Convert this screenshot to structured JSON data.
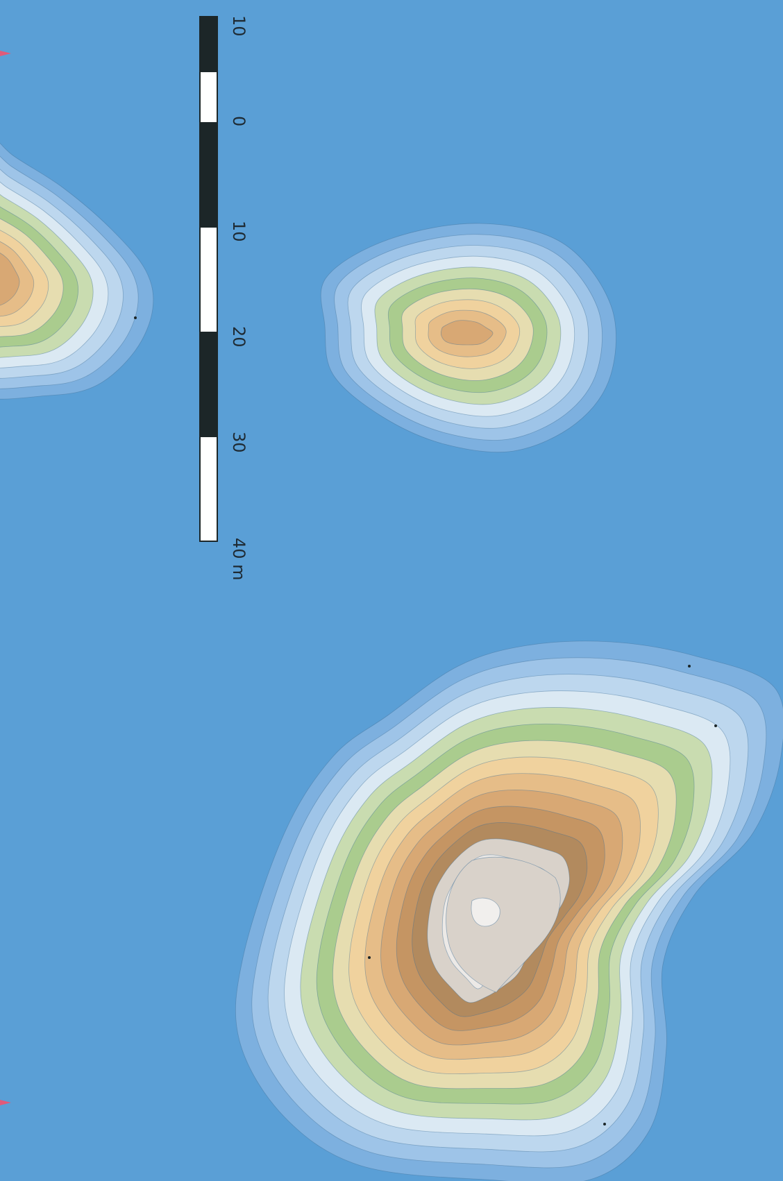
{
  "map": {
    "type": "contour-map",
    "orientation": "rotated 90° clockwise",
    "colors": {
      "water": "#5a9fd6",
      "contour_line": "#3f6f97",
      "scale_dark": "#1c2628",
      "scale_light": "#ffffff",
      "elevation_ramp": [
        "#7db0df",
        "#9ec4e8",
        "#bdd7ee",
        "#dbe9f3",
        "#c9dcb0",
        "#aacc8e",
        "#e6ddb0",
        "#f0d29e",
        "#e6bd88",
        "#d8a874",
        "#c59563",
        "#b28a5e",
        "#d9d2ca",
        "#ece9e6"
      ]
    },
    "islands": [
      {
        "name": "large island",
        "contour_count": 14,
        "has_summit_plateau": true
      },
      {
        "name": "small island",
        "contour_count": 10
      },
      {
        "name": "partial island (edge)",
        "contour_count": 10
      }
    ],
    "markers": [
      {
        "name": "red tick top-left",
        "color": "#e05a7a"
      },
      {
        "name": "red tick bottom-left",
        "color": "#e05a7a"
      }
    ]
  },
  "scale_bar": {
    "unit": "m",
    "ticks": [
      "10",
      "0",
      "10",
      "20",
      "30",
      "40 m"
    ]
  }
}
